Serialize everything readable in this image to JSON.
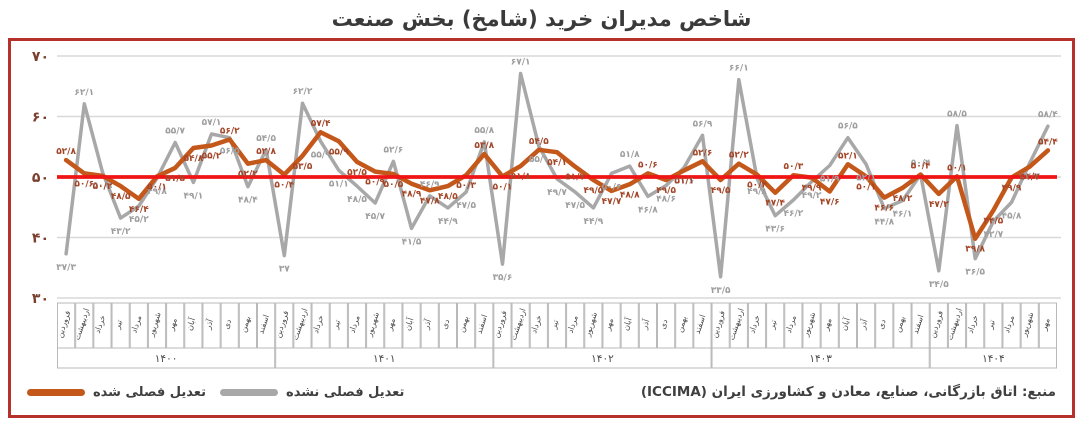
{
  "title": "شاخص مدیران خرید (شامخ) بخش صنعت",
  "source": "منبع: اتاق بازرگانی، صنایع، معادن و کشاورزی ایران (ICCIMA)",
  "legend": {
    "adjusted": "تعدیل فصلی شده",
    "unadjusted": "تعدیل فصلی نشده"
  },
  "colors": {
    "adjusted_line": "#c4571a",
    "adjusted_label": "#a34527",
    "unadjusted_line": "#a8a8a8",
    "unadjusted_label": "#9e9e9e",
    "refline": "#f01515",
    "grid": "#d9d9d9",
    "frame_border": "#b6312c",
    "axis_tick": "#7b3f2f"
  },
  "chart_data": {
    "type": "line",
    "months": [
      "فروردین",
      "اردیبهشت",
      "خرداد",
      "تیر",
      "مرداد",
      "شهریور",
      "مهر",
      "آبان",
      "آذر",
      "دی",
      "بهمن",
      "اسفند"
    ],
    "years": [
      {
        "label": "۱۴۰۰",
        "months": 12
      },
      {
        "label": "۱۴۰۱",
        "months": 12
      },
      {
        "label": "۱۴۰۲",
        "months": 12
      },
      {
        "label": "۱۴۰۳",
        "months": 12
      },
      {
        "label": "۱۴۰۴",
        "months": 7
      }
    ],
    "ylim": [
      30,
      70
    ],
    "yticks": [
      {
        "value": 70,
        "label": "۷۰"
      },
      {
        "value": 60,
        "label": "۶۰"
      },
      {
        "value": 50,
        "label": "۵۰"
      },
      {
        "value": 40,
        "label": "۴۰"
      },
      {
        "value": 30,
        "label": "۳۰"
      }
    ],
    "refline": {
      "value": 50
    },
    "grid": true,
    "legend_position": "bottom-left",
    "series": [
      {
        "name": "تعدیل فصلی شده",
        "values": [
          52.8,
          50.6,
          50.2,
          48.5,
          46.4,
          50.1,
          51.5,
          54.8,
          55.2,
          56.2,
          52.2,
          52.8,
          50.4,
          53.5,
          57.4,
          55.9,
          52.5,
          50.9,
          50.5,
          48.9,
          47.8,
          48.5,
          50.3,
          53.8,
          50.1,
          51.8,
          54.5,
          54.1,
          51.7,
          49.5,
          47.7,
          48.8,
          50.6,
          49.5,
          51.1,
          52.6,
          49.5,
          52.2,
          50.4,
          47.4,
          50.3,
          49.9,
          47.6,
          52.1,
          50.1,
          46.6,
          48.2,
          50.4,
          47.2,
          50.1,
          39.8,
          44.5,
          49.9,
          51.7,
          54.4
        ]
      },
      {
        "name": "تعدیل فصلی نشده",
        "values": [
          37.3,
          62.1,
          50.8,
          43.2,
          45.2,
          49.8,
          55.7,
          49.1,
          57.1,
          56.5,
          48.4,
          54.5,
          37.0,
          62.2,
          55.9,
          51.1,
          48.5,
          45.7,
          52.6,
          41.5,
          46.9,
          44.9,
          47.5,
          55.8,
          35.6,
          67.1,
          55.1,
          49.7,
          47.5,
          44.9,
          50.6,
          51.8,
          46.8,
          48.6,
          51.6,
          56.9,
          33.5,
          66.1,
          49.8,
          43.6,
          46.2,
          49.2,
          51.9,
          56.5,
          52.1,
          44.8,
          46.1,
          50.4,
          34.5,
          58.5,
          36.5,
          42.7,
          45.8,
          52.3,
          58.4
        ]
      }
    ]
  }
}
